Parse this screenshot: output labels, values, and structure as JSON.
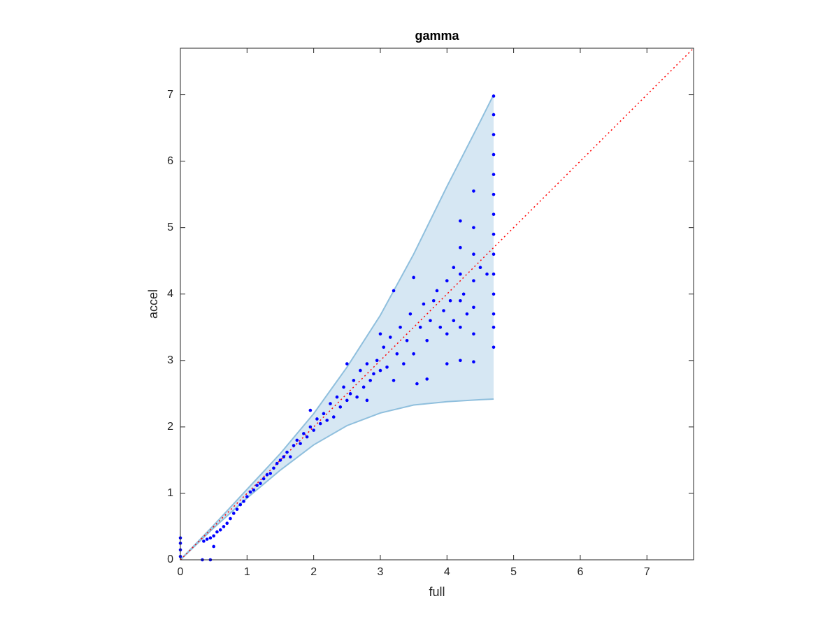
{
  "chart_data": {
    "type": "scatter",
    "title": "gamma",
    "x_label": "full",
    "y_label": "accel",
    "xlim": [
      0,
      7.7
    ],
    "ylim": [
      0,
      7.7
    ],
    "xticks": [
      0,
      1,
      2,
      3,
      4,
      5,
      6,
      7
    ],
    "yticks": [
      0,
      1,
      2,
      3,
      4,
      5,
      6,
      7
    ],
    "grid": false,
    "reference_line": {
      "color": "#ff0000"
    },
    "band": {
      "fill": "#d6e7f3",
      "edge": "#8fbfdd",
      "x": [
        0,
        0.5,
        1,
        1.5,
        2,
        2.5,
        3,
        3.5,
        4,
        4.5,
        4.7
      ],
      "upper": [
        0,
        0.52,
        1.06,
        1.6,
        2.2,
        2.9,
        3.68,
        4.6,
        5.62,
        6.6,
        7.0
      ],
      "lower": [
        0,
        0.48,
        0.93,
        1.35,
        1.73,
        2.02,
        2.21,
        2.33,
        2.38,
        2.41,
        2.42
      ]
    },
    "series": [
      {
        "color": "#0000ff",
        "x": [
          0,
          0,
          0,
          0,
          0.33,
          0.45,
          0.5,
          0.35,
          0.4,
          0.45,
          0.5,
          0.55,
          0.6,
          0.65,
          0.7,
          0.75,
          0.8,
          0.85,
          0.9,
          0.95,
          1.0,
          1.05,
          1.1,
          1.15,
          1.2,
          1.25,
          1.3,
          1.35,
          1.4,
          1.45,
          1.5,
          1.55,
          1.6,
          1.65,
          1.7,
          1.75,
          1.8,
          1.85,
          1.9,
          1.95,
          2.0,
          2.05,
          2.1,
          2.15,
          2.2,
          2.25,
          2.3,
          2.35,
          2.4,
          2.45,
          2.5,
          2.55,
          2.6,
          2.65,
          2.7,
          2.75,
          2.8,
          2.85,
          2.9,
          2.95,
          3.0,
          3.05,
          3.1,
          3.15,
          3.2,
          3.25,
          3.3,
          3.35,
          3.4,
          3.45,
          3.5,
          3.55,
          3.6,
          3.65,
          3.7,
          3.75,
          3.8,
          3.85,
          3.9,
          3.95,
          4.0,
          4.0,
          4.05,
          4.1,
          4.1,
          4.2,
          4.2,
          4.2,
          4.2,
          4.2,
          4.2,
          4.25,
          4.3,
          4.4,
          4.4,
          4.4,
          4.4,
          4.4,
          4.4,
          4.4,
          4.7,
          4.7,
          4.7,
          4.7,
          4.7,
          4.7,
          4.7,
          4.7,
          4.7,
          4.7,
          4.7,
          4.7,
          4.7,
          4.7,
          3.2,
          3.5,
          1.95,
          2.5,
          2.8,
          3.0,
          3.7,
          4.0,
          4.5,
          4.6
        ],
        "values": [
          0.05,
          0.15,
          0.25,
          0.33,
          0,
          0,
          0.2,
          0.28,
          0.31,
          0.33,
          0.36,
          0.42,
          0.45,
          0.5,
          0.55,
          0.62,
          0.7,
          0.76,
          0.83,
          0.88,
          0.95,
          1.02,
          1.05,
          1.12,
          1.15,
          1.22,
          1.28,
          1.3,
          1.38,
          1.45,
          1.5,
          1.55,
          1.62,
          1.55,
          1.72,
          1.8,
          1.75,
          1.9,
          1.85,
          2.0,
          1.95,
          2.12,
          2.05,
          2.2,
          2.1,
          2.35,
          2.15,
          2.45,
          2.3,
          2.6,
          2.4,
          2.5,
          2.7,
          2.45,
          2.85,
          2.6,
          2.95,
          2.7,
          2.8,
          3.0,
          2.85,
          3.2,
          2.9,
          3.35,
          2.7,
          3.1,
          3.5,
          2.95,
          3.3,
          3.7,
          3.1,
          2.65,
          3.5,
          3.85,
          3.3,
          3.6,
          3.9,
          4.05,
          3.5,
          3.75,
          4.2,
          3.4,
          3.9,
          4.4,
          3.6,
          5.1,
          4.7,
          4.3,
          3.9,
          3.5,
          3.0,
          4.0,
          3.7,
          5.55,
          5.0,
          4.6,
          4.2,
          3.8,
          3.4,
          2.98,
          6.98,
          6.7,
          6.4,
          6.1,
          5.8,
          5.5,
          5.2,
          4.9,
          4.6,
          4.3,
          4.0,
          3.7,
          3.5,
          3.2,
          4.05,
          4.25,
          2.25,
          2.95,
          2.4,
          3.4,
          2.72,
          2.95,
          4.4,
          4.3
        ]
      }
    ]
  }
}
